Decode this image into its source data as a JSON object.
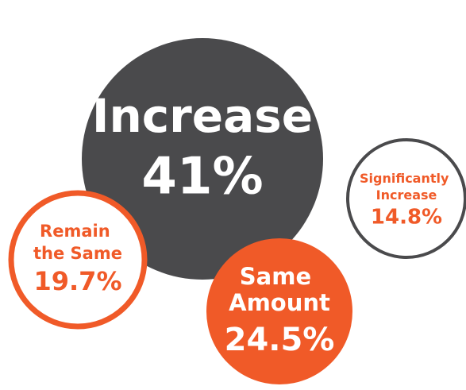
{
  "chart_data": {
    "type": "bubble",
    "categories": [
      "Increase",
      "Remain the Same",
      "Same Amount",
      "Significantly Increase"
    ],
    "values": [
      41,
      19.7,
      24.5,
      14.8
    ],
    "value_labels": [
      "41%",
      "19.7%",
      "24.5%",
      "14.8%"
    ],
    "colors": [
      "#4a4a4c",
      "#f05a28",
      "#f05a28",
      "#4a4a4c"
    ],
    "fills": [
      "solid",
      "outline",
      "solid",
      "outline"
    ]
  }
}
